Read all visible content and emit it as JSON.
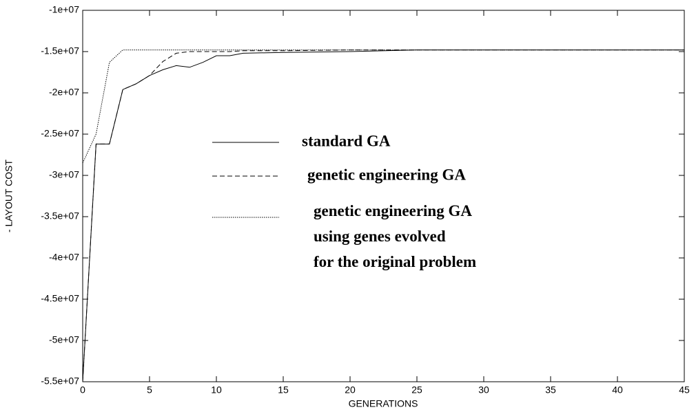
{
  "chart_data": {
    "type": "line",
    "xlabel": "GENERATIONS",
    "ylabel": "- LAYOUT COST",
    "x": [
      0,
      1,
      2,
      3,
      4,
      5,
      6,
      7,
      8,
      9,
      10,
      11,
      12,
      15,
      20,
      25,
      45
    ],
    "series": [
      {
        "name": "standard GA",
        "color": "#000000",
        "dash": "solid",
        "values": [
          -55000000,
          -26200000,
          -26200000,
          -19600000,
          -18900000,
          -17900000,
          -17200000,
          -16700000,
          -16900000,
          -16300000,
          -15500000,
          -15500000,
          -15200000,
          -15100000,
          -15000000,
          -14800000,
          -14800000
        ]
      },
      {
        "name": "genetic engineering GA",
        "color": "#000000",
        "dash": "dashed",
        "values": [
          -55000000,
          -26200000,
          -26200000,
          -19600000,
          -18900000,
          -17900000,
          -16200000,
          -15200000,
          -15000000,
          -15000000,
          -15000000,
          -15000000,
          -14900000,
          -14900000,
          -14800000,
          -14800000,
          -14800000
        ]
      },
      {
        "name": "genetic engineering GA\nusing genes  evolved\nfor the original problem",
        "color": "#000000",
        "dash": "dotted",
        "values": [
          -28500000,
          -25000000,
          -16300000,
          -14800000,
          -14800000,
          -14800000,
          -14800000,
          -14800000,
          -14800000,
          -14800000,
          -14800000,
          -14800000,
          -14800000,
          -14800000,
          -14800000,
          -14800000,
          -14800000
        ]
      }
    ],
    "xlim": [
      0,
      45
    ],
    "xticks": [
      0,
      5,
      10,
      15,
      20,
      25,
      30,
      35,
      40,
      45
    ],
    "ylim": [
      -55000000,
      -10000000
    ],
    "yticks": [
      {
        "value": -55000000,
        "label": "-5.5e+07"
      },
      {
        "value": -50000000,
        "label": "-5e+07"
      },
      {
        "value": -45000000,
        "label": "-4.5e+07"
      },
      {
        "value": -40000000,
        "label": "-4e+07"
      },
      {
        "value": -35000000,
        "label": "-3.5e+07"
      },
      {
        "value": -30000000,
        "label": "-3e+07"
      },
      {
        "value": -25000000,
        "label": "-2.5e+07"
      },
      {
        "value": -20000000,
        "label": "-2e+07"
      },
      {
        "value": -15000000,
        "label": "-1.5e+07"
      },
      {
        "value": -10000000,
        "label": "-1e+07"
      }
    ],
    "grid": false
  }
}
